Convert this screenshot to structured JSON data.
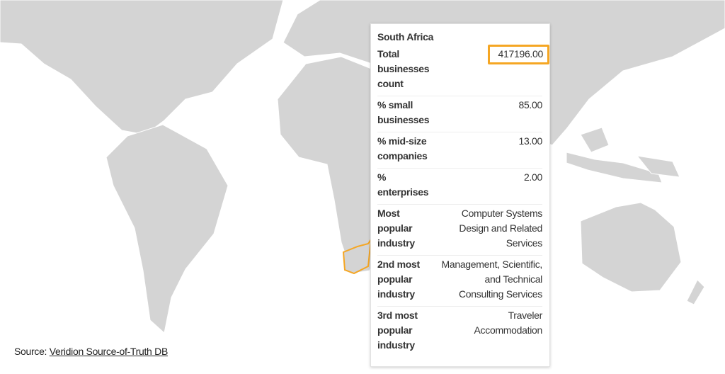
{
  "tooltip": {
    "title": "South Africa",
    "rows": [
      {
        "label": "Total businesses count",
        "value": "417196.00"
      },
      {
        "label": "% small businesses",
        "value": "85.00"
      },
      {
        "label": "% mid-size companies",
        "value": "13.00"
      },
      {
        "label": "% enterprises",
        "value": "2.00"
      },
      {
        "label": "Most popular industry",
        "value": "Computer Systems Design and Related Services"
      },
      {
        "label": "2nd most popular industry",
        "value": "Management, Scientific, and Technical Consulting Services"
      },
      {
        "label": "3rd most popular industry",
        "value": "Traveler Accommodation"
      }
    ]
  },
  "source": {
    "prefix": "Source:",
    "link": "Veridion Source-of-Truth DB"
  }
}
